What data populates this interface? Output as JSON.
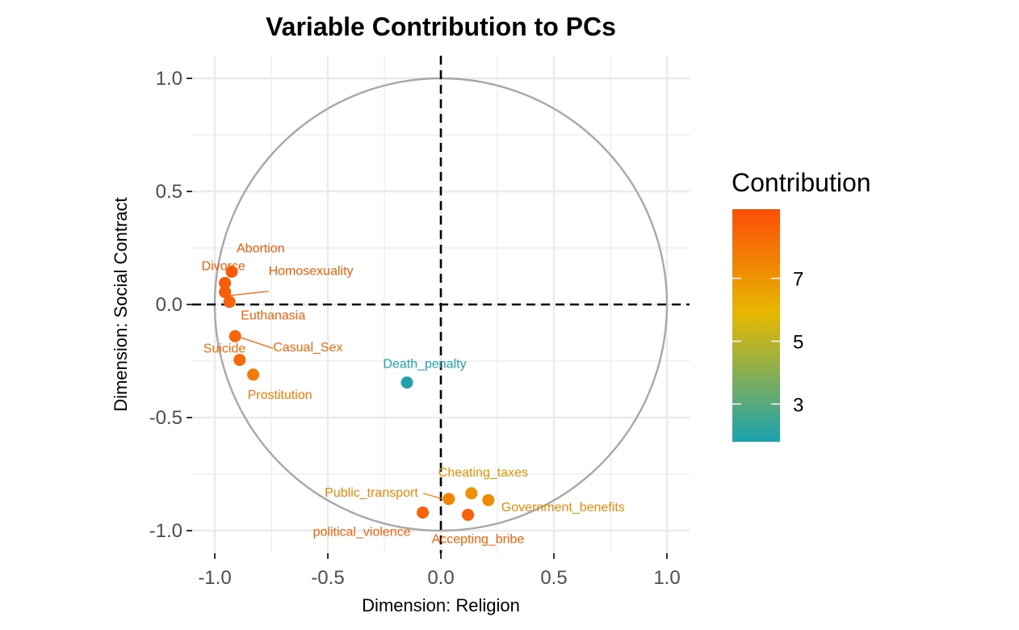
{
  "chart_data": {
    "type": "scatter",
    "title": "Variable Contribution to PCs",
    "xlabel": "Dimension: Religion",
    "ylabel": "Dimension: Social Contract",
    "xlim": [
      -1.1,
      1.1
    ],
    "ylim": [
      -1.1,
      1.1
    ],
    "x_ticks": [
      "-1.0",
      "-0.5",
      "0.0",
      "0.5",
      "1.0"
    ],
    "y_ticks": [
      "1.0",
      "0.5",
      "0.0",
      "-0.5",
      "-1.0"
    ],
    "grid": true,
    "correlation_circle": true,
    "reference_lines": "dashed at x=0 and y=0",
    "legend": {
      "title": "Contribution",
      "ticks": [
        "7",
        "5",
        "3"
      ],
      "tick_values": [
        7,
        5,
        3
      ],
      "range": [
        1.8,
        9.2
      ],
      "placement": "right"
    },
    "points": [
      {
        "label": "Abortion",
        "x": -0.925,
        "y": 0.145,
        "contribution": 8.9
      },
      {
        "label": "Divorce",
        "x": -0.955,
        "y": 0.095,
        "contribution": 8.8
      },
      {
        "label": "Homosexuality",
        "x": -0.955,
        "y": 0.055,
        "contribution": 8.7
      },
      {
        "label": "Euthanasia",
        "x": -0.935,
        "y": 0.012,
        "contribution": 8.6
      },
      {
        "label": "Casual_Sex",
        "x": -0.91,
        "y": -0.14,
        "contribution": 8.4
      },
      {
        "label": "Suicide",
        "x": -0.89,
        "y": -0.245,
        "contribution": 8.3
      },
      {
        "label": "Prostitution",
        "x": -0.83,
        "y": -0.31,
        "contribution": 7.8
      },
      {
        "label": "Death_penalty",
        "x": -0.15,
        "y": -0.345,
        "contribution": 1.9
      },
      {
        "label": "Cheating_taxes",
        "x": 0.135,
        "y": -0.835,
        "contribution": 7.1
      },
      {
        "label": "Government_benefits",
        "x": 0.21,
        "y": -0.865,
        "contribution": 7.3
      },
      {
        "label": "Public_transport",
        "x": 0.035,
        "y": -0.86,
        "contribution": 7.5
      },
      {
        "label": "political_violence",
        "x": -0.08,
        "y": -0.92,
        "contribution": 8.5
      },
      {
        "label": "Accepting_bribe",
        "x": 0.12,
        "y": -0.93,
        "contribution": 8.6
      }
    ]
  },
  "colors": {
    "low": "#1aa3b0",
    "mid": "#e7b800",
    "high": "#fc4e07",
    "grid": "#ebebeb",
    "circle": "#a8a8a8"
  }
}
